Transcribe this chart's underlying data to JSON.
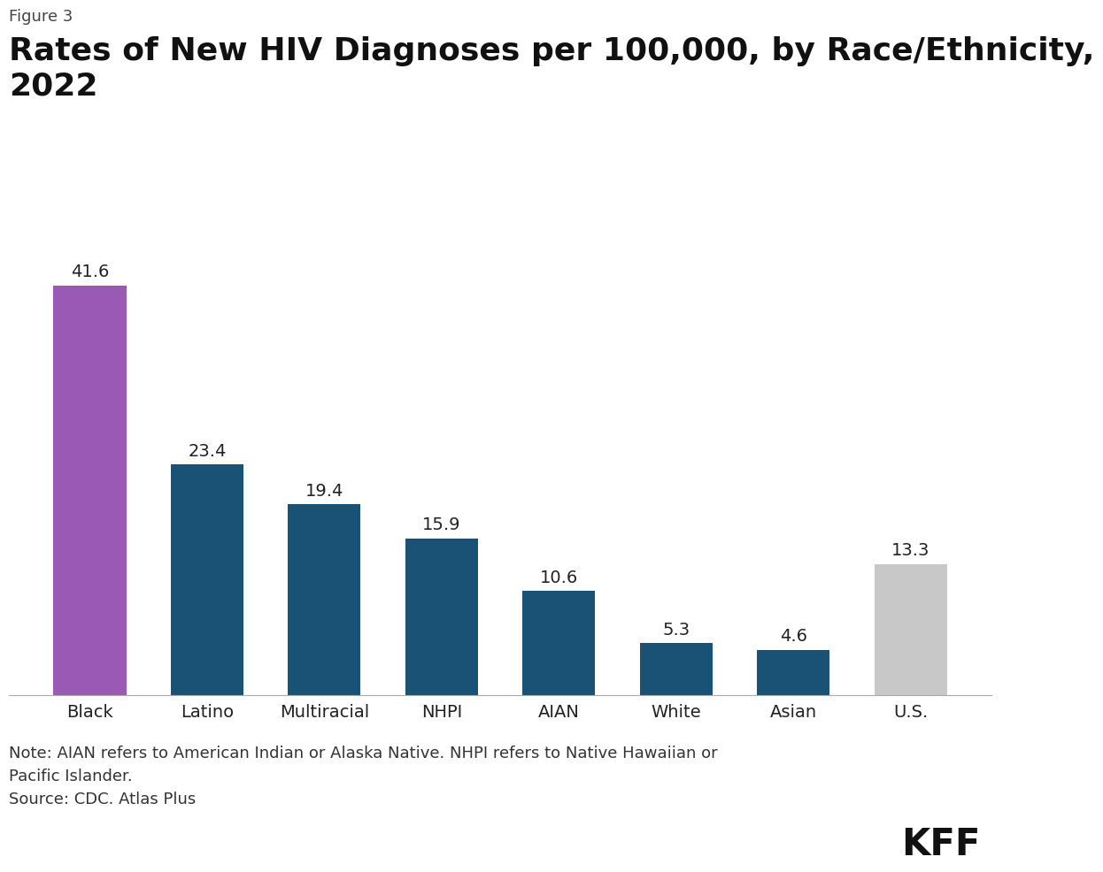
{
  "categories": [
    "Black",
    "Latino",
    "Multiracial",
    "NHPI",
    "AIAN",
    "White",
    "Asian",
    "U.S."
  ],
  "values": [
    41.6,
    23.4,
    19.4,
    15.9,
    10.6,
    5.3,
    4.6,
    13.3
  ],
  "bar_colors": [
    "#9b59b6",
    "#1a5276",
    "#1a5276",
    "#1a5276",
    "#1a5276",
    "#1a5276",
    "#1a5276",
    "#c8c8c8"
  ],
  "figure_label": "Figure 3",
  "title": "Rates of New HIV Diagnoses per 100,000, by Race/Ethnicity,\n2022",
  "note_text": "Note: AIAN refers to American Indian or Alaska Native. NHPI refers to Native Hawaiian or\nPacific Islander.\nSource: CDC. Atlas Plus",
  "kff_label": "KFF",
  "background_color": "#ffffff",
  "bar_label_fontsize": 14,
  "xlabel_fontsize": 14,
  "title_fontsize": 26,
  "figure_label_fontsize": 13,
  "note_fontsize": 13,
  "kff_fontsize": 30,
  "ylim": [
    0,
    48
  ]
}
